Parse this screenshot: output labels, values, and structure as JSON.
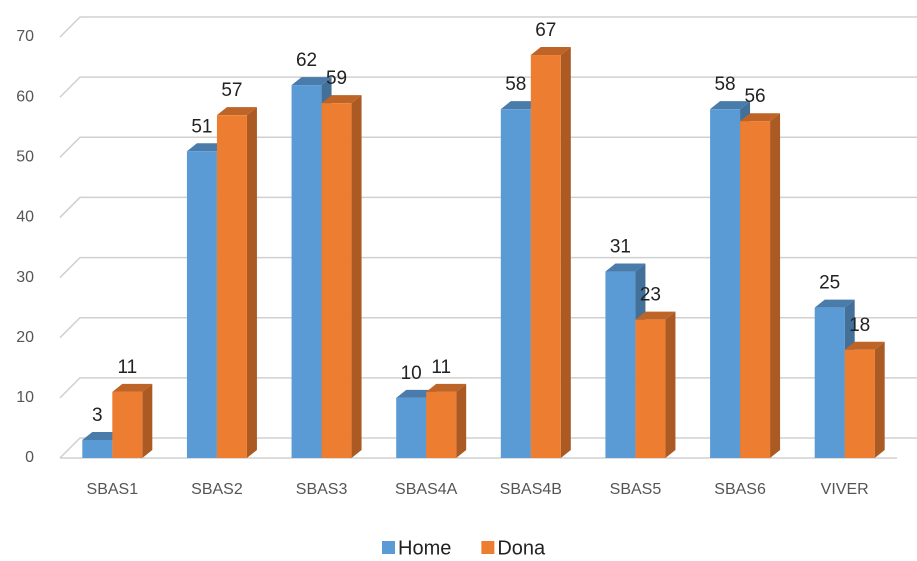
{
  "chart_data": {
    "type": "bar3d",
    "categories": [
      "SBAS1",
      "SBAS2",
      "SBAS3",
      "SBAS4A",
      "SBAS4B",
      "SBAS5",
      "SBAS6",
      "VIVER"
    ],
    "series": [
      {
        "name": "Home",
        "color": "#5b9bd5",
        "values": [
          3,
          51,
          62,
          10,
          58,
          31,
          58,
          25
        ]
      },
      {
        "name": "Dona",
        "color": "#ed7d31",
        "values": [
          11,
          57,
          59,
          11,
          67,
          23,
          56,
          18
        ]
      }
    ],
    "ylim": [
      0,
      70
    ],
    "yticks": [
      0,
      10,
      20,
      30,
      40,
      50,
      60,
      70
    ],
    "grid": true,
    "legend": "bottom"
  }
}
